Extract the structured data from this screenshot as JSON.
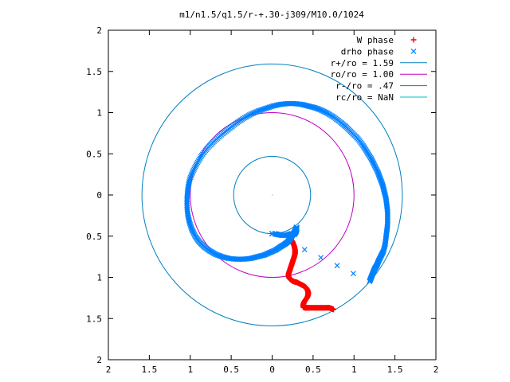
{
  "chart_data": {
    "type": "scatter",
    "title": "m1/n1.5/q1.5/r-+.30-j309/M10.0/1024",
    "xlim": [
      -2,
      2
    ],
    "ylim": [
      -2,
      2
    ],
    "x_ticks": [
      -2,
      -1.5,
      -1,
      -0.5,
      0,
      0.5,
      1,
      1.5,
      2
    ],
    "y_ticks": [
      -2,
      -1.5,
      -1,
      -0.5,
      0,
      0.5,
      1,
      1.5,
      2
    ],
    "x_tick_labels": [
      "2",
      "1.5",
      "1",
      "0.5",
      "0",
      "0.5",
      "1",
      "1.5",
      "2"
    ],
    "y_tick_labels": [
      "2",
      "1.5",
      "1",
      "0.5",
      "0",
      "0.5",
      "1",
      "1.5",
      "2"
    ],
    "grid": false,
    "legend_position": "top-right",
    "legend": [
      {
        "label": "W phase",
        "kind": "plus",
        "color": "#ff0000"
      },
      {
        "label": "drho phase",
        "kind": "cross",
        "color": "#0080ff"
      },
      {
        "label": "r+/ro = 1.59",
        "kind": "line",
        "color": "#0080c0"
      },
      {
        "label": "ro/ro = 1.00",
        "kind": "line",
        "color": "#c000c0"
      },
      {
        "label": "r-/ro = .47",
        "kind": "line",
        "color": "#0080c0"
      },
      {
        "label": "rc/ro = NaN",
        "kind": "line",
        "color": "#00c0c0"
      }
    ],
    "circles": [
      {
        "name": "r+/ro",
        "radius": 1.59,
        "color": "#0080c0"
      },
      {
        "name": "ro/ro",
        "radius": 1.0,
        "color": "#c000c0"
      },
      {
        "name": "r-/ro",
        "radius": 0.47,
        "color": "#0080c0"
      }
    ],
    "series": [
      {
        "name": "W phase",
        "marker": "plus",
        "color": "#ff0000",
        "x": [
          0.2,
          0.22,
          0.25,
          0.27,
          0.28,
          0.28,
          0.27,
          0.26,
          0.25,
          0.24,
          0.23,
          0.22,
          0.21,
          0.2,
          0.2,
          0.21,
          0.23,
          0.26,
          0.3,
          0.34,
          0.38,
          0.41,
          0.43,
          0.44,
          0.44,
          0.43,
          0.41,
          0.39,
          0.38,
          0.38,
          0.4,
          0.43,
          0.47,
          0.52,
          0.57,
          0.62,
          0.67,
          0.7,
          0.73,
          0.75
        ],
        "y": [
          -0.48,
          -0.52,
          -0.57,
          -0.62,
          -0.67,
          -0.71,
          -0.75,
          -0.78,
          -0.81,
          -0.84,
          -0.87,
          -0.9,
          -0.93,
          -0.96,
          -0.99,
          -1.01,
          -1.03,
          -1.05,
          -1.06,
          -1.08,
          -1.1,
          -1.12,
          -1.15,
          -1.18,
          -1.21,
          -1.24,
          -1.27,
          -1.3,
          -1.33,
          -1.36,
          -1.37,
          -1.37,
          -1.37,
          -1.37,
          -1.37,
          -1.37,
          -1.37,
          -1.37,
          -1.38,
          -1.39
        ]
      },
      {
        "name": "drho phase",
        "marker": "cross",
        "color": "#0080ff",
        "x": [
          0.0,
          0.0,
          1.19,
          1.21,
          1.23,
          1.25,
          1.28,
          1.3,
          1.33,
          1.36,
          1.38,
          1.39,
          1.4,
          1.41,
          1.41,
          1.41,
          1.4,
          1.39,
          1.37,
          1.35,
          1.32,
          1.29,
          1.25,
          1.21,
          1.16,
          1.11,
          1.05,
          0.98,
          0.91,
          0.84,
          0.76,
          0.68,
          0.6,
          0.52,
          0.44,
          0.36,
          0.27,
          0.19,
          0.1,
          0.01,
          -0.08,
          -0.17,
          -0.26,
          -0.35,
          -0.44,
          -0.53,
          -0.62,
          -0.71,
          -0.79,
          -0.86,
          -0.92,
          -0.97,
          -1.01,
          -1.03,
          -1.04,
          -1.04,
          -1.03,
          -1.01,
          -0.98,
          -0.94,
          -0.89,
          -0.83,
          -0.76,
          -0.69,
          -0.61,
          -0.53,
          -0.44,
          -0.35,
          -0.26,
          -0.18,
          -0.1,
          -0.03,
          0.04,
          0.1,
          0.15,
          0.19,
          0.22,
          0.24,
          0.26,
          0.28,
          0.29,
          0.3,
          0.3,
          0.29,
          0.27,
          0.24,
          0.21,
          0.17,
          0.12,
          0.07,
          0.03
        ],
        "y": [
          -0.47,
          -0.47,
          -1.05,
          -1.0,
          -0.95,
          -0.9,
          -0.85,
          -0.8,
          -0.74,
          -0.68,
          -0.6,
          -0.52,
          -0.44,
          -0.36,
          -0.28,
          -0.2,
          -0.12,
          -0.04,
          0.04,
          0.12,
          0.2,
          0.28,
          0.36,
          0.44,
          0.52,
          0.6,
          0.68,
          0.75,
          0.82,
          0.88,
          0.94,
          0.99,
          1.03,
          1.06,
          1.08,
          1.1,
          1.11,
          1.11,
          1.1,
          1.08,
          1.05,
          1.02,
          0.98,
          0.93,
          0.87,
          0.8,
          0.73,
          0.65,
          0.57,
          0.48,
          0.38,
          0.28,
          0.18,
          0.07,
          -0.04,
          -0.14,
          -0.24,
          -0.33,
          -0.42,
          -0.5,
          -0.57,
          -0.63,
          -0.68,
          -0.72,
          -0.75,
          -0.77,
          -0.78,
          -0.78,
          -0.77,
          -0.75,
          -0.73,
          -0.7,
          -0.67,
          -0.63,
          -0.6,
          -0.57,
          -0.53,
          -0.5,
          -0.47,
          -0.44,
          -0.41,
          -0.39,
          -0.42,
          -0.45,
          -0.48,
          -0.47,
          -0.48,
          -0.49,
          -0.49,
          -0.48,
          -0.47
        ]
      }
    ]
  }
}
